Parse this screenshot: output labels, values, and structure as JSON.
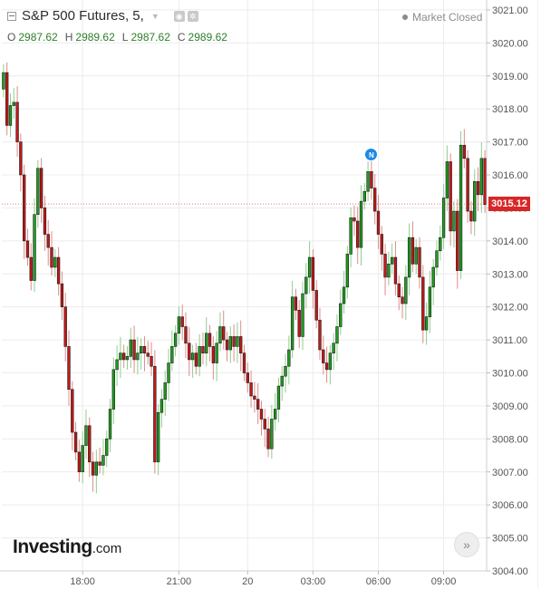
{
  "header": {
    "symbol": "S&P 500 Futures, 5,",
    "market_status": "Market Closed",
    "ohlc": {
      "o_label": "O",
      "o": "2987.62",
      "h_label": "H",
      "h": "2989.62",
      "l_label": "L",
      "l": "2987.62",
      "c_label": "C",
      "c": "2989.62"
    }
  },
  "brand": {
    "name": "Investing",
    "domain": ".com"
  },
  "last_price": "3015.12",
  "event_marker": "N",
  "colors": {
    "up": "#1f9e1f",
    "down": "#c41818",
    "grid": "#ececec",
    "axis": "#555555",
    "price_tag": "#d92626",
    "event": "#1e88e5"
  },
  "chart_data": {
    "type": "candlestick",
    "ylim": [
      3004.0,
      3021.3
    ],
    "y_ticks": [
      "3004.00",
      "3005.00",
      "3006.00",
      "3007.00",
      "3008.00",
      "3009.00",
      "3010.00",
      "3011.00",
      "3012.00",
      "3013.00",
      "3014.00",
      "3015.00",
      "3016.00",
      "3017.00",
      "3018.00",
      "3019.00",
      "3020.00",
      "3021.00"
    ],
    "x_ticks": [
      "18:00",
      "21:00",
      "20",
      "03:00",
      "06:00",
      "09:00"
    ],
    "x_tick_index": [
      23,
      51,
      71,
      90,
      109,
      128
    ],
    "last_price": 3015.12,
    "event_index": 107,
    "closes": [
      3019.1,
      3017.5,
      3018.1,
      3018.2,
      3017.0,
      3016.0,
      3014.0,
      3013.5,
      3012.8,
      3014.8,
      3016.2,
      3015.0,
      3014.2,
      3013.8,
      3013.2,
      3013.5,
      3012.7,
      3012.0,
      3010.8,
      3009.5,
      3008.2,
      3007.6,
      3007.0,
      3007.8,
      3008.4,
      3007.3,
      3006.9,
      3007.3,
      3007.2,
      3007.5,
      3008.0,
      3008.9,
      3010.1,
      3010.4,
      3010.6,
      3010.4,
      3010.5,
      3011.0,
      3010.4,
      3010.6,
      3010.8,
      3010.6,
      3010.5,
      3010.2,
      3007.3,
      3008.8,
      3009.2,
      3009.7,
      3010.3,
      3010.8,
      3011.2,
      3011.7,
      3011.4,
      3010.9,
      3010.4,
      3010.6,
      3010.2,
      3010.8,
      3010.6,
      3011.2,
      3010.8,
      3010.3,
      3010.9,
      3011.4,
      3011.0,
      3010.7,
      3011.1,
      3010.8,
      3011.1,
      3010.6,
      3010.0,
      3009.7,
      3009.3,
      3009.2,
      3008.9,
      3008.6,
      3008.3,
      3007.7,
      3008.6,
      3008.9,
      3009.6,
      3009.9,
      3010.2,
      3010.7,
      3012.3,
      3011.9,
      3011.1,
      3012.4,
      3012.9,
      3013.5,
      3012.5,
      3011.6,
      3010.7,
      3010.3,
      3010.1,
      3010.6,
      3010.9,
      3011.4,
      3012.1,
      3012.6,
      3013.6,
      3014.7,
      3014.6,
      3013.8,
      3015.2,
      3015.5,
      3016.1,
      3015.6,
      3014.9,
      3014.2,
      3013.6,
      3012.9,
      3013.3,
      3013.5,
      3012.7,
      3012.3,
      3012.1,
      3012.9,
      3014.1,
      3013.3,
      3013.8,
      3012.9,
      3011.3,
      3011.7,
      3012.6,
      3013.2,
      3013.7,
      3014.1,
      3015.3,
      3016.4,
      3014.3,
      3014.9,
      3013.1,
      3016.9,
      3016.5,
      3014.9,
      3014.6,
      3015.8,
      3015.4,
      3016.5,
      3015.1
    ]
  }
}
